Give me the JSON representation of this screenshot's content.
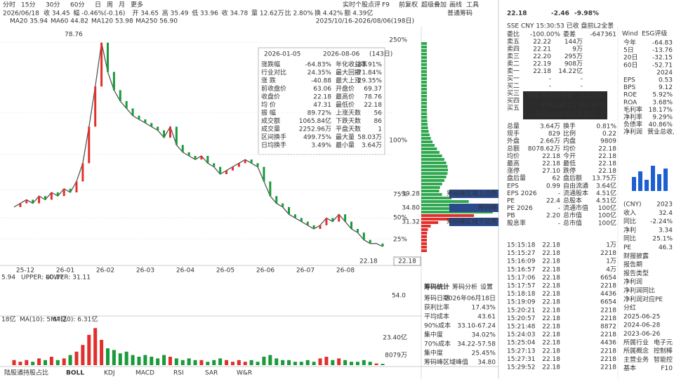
{
  "toolbar": {
    "periods": [
      "分时",
      "15分",
      "30分",
      "60分",
      "日",
      "周",
      "月",
      "更多"
    ],
    "tools": [
      "实时个股点评",
      "F9",
      "前复权",
      "超级叠加",
      "画线",
      "工具"
    ],
    "chip_title": "普通筹码"
  },
  "quote_bar": [
    "2026/06/18",
    "收 34.45",
    "幅 -0.46%(-0.16)",
    "开 34.65",
    "高 35.49",
    "低 33.96",
    "收 34.78",
    "量 12.62万",
    "比 2.80%",
    "换 4.42%",
    "额 4.39亿"
  ],
  "ma_bar": [
    "MA20 35.94",
    "MA60 44.82",
    "MA120 53.98",
    "MA250 56.90"
  ],
  "range": "2025/10/16-2026/08/06(198日)",
  "chart": {
    "dates": [
      "25-12",
      "26-01",
      "26-02",
      "26-03",
      "26-04",
      "26-05",
      "26-06",
      "26-07",
      "26-08"
    ],
    "pct_labels": [
      "250%",
      "100%",
      "75%",
      "50%",
      "25%"
    ],
    "high_label": "78.76",
    "low_label": "22.18",
    "price_tag": "22.18",
    "ylim": [
      17,
      82
    ],
    "price": [
      33,
      34,
      35,
      34,
      36,
      35,
      37,
      36,
      38,
      37,
      40,
      45,
      55,
      66,
      78,
      70,
      65,
      62,
      60,
      58,
      57,
      56,
      55,
      54,
      52,
      55,
      50,
      48,
      47,
      46,
      47,
      45,
      44,
      42,
      43,
      44,
      45,
      46,
      45,
      44,
      40,
      36,
      34,
      33,
      31,
      30,
      29,
      28,
      27,
      28,
      30,
      29,
      31,
      29,
      27,
      26,
      24,
      23,
      23,
      22.18
    ],
    "vol_ylim": [
      0,
      25
    ],
    "volume": [
      3,
      2,
      3,
      2,
      4,
      3,
      5,
      3,
      4,
      6,
      8,
      12,
      18,
      22,
      15,
      10,
      9,
      7,
      8,
      6,
      5,
      6,
      5,
      4,
      6,
      5,
      4,
      3,
      4,
      3,
      3,
      2,
      3,
      4,
      3,
      2,
      3,
      2,
      3,
      2,
      5,
      6,
      4,
      3,
      3,
      2,
      2,
      3,
      2,
      4,
      5,
      3,
      4,
      3,
      2,
      2,
      3,
      2,
      1,
      0.8
    ]
  },
  "chip_labels": {
    "prices": [
      "39.28",
      "34.80",
      "31.32"
    ],
    "zones": [
      "筹码峰区域上边界",
      "筹码峰",
      "筹码峰区域下边界"
    ]
  },
  "stats_popup": {
    "start": "2026-01-05",
    "end": "2026-08-06",
    "days": "(143日)",
    "rows": [
      [
        "涨跌幅",
        "-64.83%",
        "年化收益率",
        "-83.91%"
      ],
      [
        "行业对比",
        "24.35%",
        "最大回撤",
        "-71.84%"
      ],
      [
        "涨  跌",
        "-40.88",
        "最大上涨",
        "29.35%"
      ],
      [
        "前收盘价",
        "63.06",
        "开盘价",
        "69.37"
      ],
      [
        "收盘价",
        "22.18",
        "最高价",
        "78.76"
      ],
      [
        "均  价",
        "47.31",
        "最低价",
        "22.18"
      ],
      [
        "振  幅",
        "89.72%",
        "上涨天数",
        "56"
      ],
      [
        "成交额",
        "1065.84亿",
        "下跌天数",
        "86"
      ],
      [
        "成交量",
        "2252.96万",
        "平盘天数",
        "1"
      ],
      [
        "区间换手",
        "499.75%",
        "最大量",
        "58.03万"
      ],
      [
        "日均换手",
        "3.49%",
        "最小量",
        "3.64万"
      ]
    ]
  },
  "boll": {
    "name": "5.94",
    "upper": "UPPER: 40.77",
    "lower": "LOWER: 31.11",
    "tick": "54.0"
  },
  "vol_panel": {
    "name": "18亿",
    "ma10": "MA(10): 5.87亿",
    "ma20": "MA(20): 6.31亿",
    "tick": "23.40亿",
    "last": "8079万"
  },
  "bottom_tabs": [
    "陆股通持股占比",
    "BOLL",
    "KDJ",
    "MACD",
    "RSI",
    "SAR",
    "W&R"
  ],
  "chip_stats": {
    "tabs": [
      "筹码统计",
      "筹码分析",
      "设置"
    ],
    "rows": [
      [
        "筹码日期",
        "2026年06月18日"
      ],
      [
        "获利比率",
        "17.43%"
      ],
      [
        "平均成本",
        "43.61"
      ],
      [
        "90%成本",
        "33.10-67.24"
      ],
      [
        "集中度",
        "34.02%"
      ],
      [
        "70%成本",
        "34.22-57.58"
      ],
      [
        "集中度",
        "25.45%"
      ],
      [
        "筹码峰区域峰值",
        "34.80"
      ]
    ]
  },
  "quote": {
    "price": "22.18",
    "change": "-2.46",
    "pct": "-9.98%",
    "info": "SSE  CNY  15:30:53 已收  盘前L2全景",
    "book": [
      [
        "委比",
        "-100.00%",
        "委差",
        "-647361"
      ],
      [
        "卖五",
        "22.22",
        "144万"
      ],
      [
        "卖四",
        "22.21",
        "9万"
      ],
      [
        "卖三",
        "22.20",
        "295万"
      ],
      [
        "卖二",
        "22.19",
        "908万"
      ],
      [
        "卖一",
        "22.18",
        "14.22亿"
      ],
      [
        "买一",
        "-",
        "-"
      ],
      [
        "买二",
        "-",
        "-"
      ],
      [
        "买三",
        "-",
        "-"
      ],
      [
        "买四",
        "-",
        "-"
      ],
      [
        "买五",
        "-",
        "-"
      ]
    ],
    "limit_tip": [
      "跌停  跌停封单额",
      "14.22亿",
      "封单占成交",
      "1760.57%",
      "升级LV2解锁全景盘口"
    ],
    "stats": [
      [
        "总量",
        "3.64万",
        "换手",
        "0.81%"
      ],
      [
        "现手",
        "829",
        "比例",
        "0.22"
      ],
      [
        "外盘",
        "2.66万",
        "内盘",
        "9809"
      ],
      [
        "总额",
        "8078.62万",
        "均价",
        "22.18"
      ],
      [
        "均价",
        "22.18",
        "今开",
        "22.18"
      ],
      [
        "最高",
        "22.18",
        "最低",
        "22.18"
      ],
      [
        "涨停",
        "27.10",
        "跌停",
        "22.18"
      ],
      [
        "盘后量",
        "62",
        "盘后额",
        "13.75万"
      ],
      [
        "EPS",
        "0.99",
        "自由流通",
        "3.64亿"
      ],
      [
        "EPS 2026",
        "-",
        "流通股本",
        "4.51亿"
      ],
      [
        "PE",
        "22.4",
        "总股本",
        "4.51亿"
      ],
      [
        "PE 2026",
        "-",
        "流通市值",
        "100亿"
      ],
      [
        "PB",
        "2.20",
        "总市值",
        "100亿"
      ],
      [
        "股息率",
        "-",
        "总市值",
        "100亿"
      ]
    ],
    "trades": [
      [
        "15:15:18",
        "22.18",
        "1万"
      ],
      [
        "15:15:27",
        "22.18",
        "2218"
      ],
      [
        "15:16:09",
        "22.18",
        "1万"
      ],
      [
        "15:16:57",
        "22.18",
        "4万"
      ],
      [
        "15:17:06",
        "22.18",
        "6654"
      ],
      [
        "15:17:57",
        "22.18",
        "2218"
      ],
      [
        "15:18:18",
        "22.18",
        "4436"
      ],
      [
        "15:19:09",
        "22.18",
        "6654"
      ],
      [
        "15:20:21",
        "22.18",
        "2218"
      ],
      [
        "15:20:57",
        "22.18",
        "2218"
      ],
      [
        "15:21:48",
        "22.18",
        "8872"
      ],
      [
        "15:24:03",
        "22.18",
        "2218"
      ],
      [
        "15:25:04",
        "22.18",
        "4436"
      ],
      [
        "15:27:13",
        "22.18",
        "2218"
      ],
      [
        "15:27:31",
        "22.18",
        "2218"
      ],
      [
        "15:29:52",
        "22.18",
        "2218"
      ]
    ]
  },
  "side": {
    "head": [
      "Wind",
      "ESG评级"
    ],
    "rows": [
      [
        "今年",
        "-64.83"
      ],
      [
        "5日",
        "-13.76"
      ],
      [
        "20日",
        "-32.15"
      ],
      [
        "60日",
        "-52.71"
      ],
      [
        "",
        "2024"
      ],
      [
        "EPS",
        "0.53"
      ],
      [
        "BPS",
        "9.12"
      ],
      [
        "ROE",
        "5.92%"
      ],
      [
        "ROA",
        "3.68%"
      ],
      [
        "毛利率",
        "18.17%"
      ],
      [
        "净利率",
        "9.29%"
      ],
      [
        "负债率",
        "40.86%"
      ],
      [
        "净利润",
        "营业总收入"
      ]
    ],
    "lower": [
      [
        "(CNY)",
        "2023"
      ],
      [
        "收入",
        "32.4"
      ],
      [
        "同比",
        "-2.24%"
      ],
      [
        "净利",
        "3.34"
      ],
      [
        "同比",
        "25.1%"
      ],
      [
        "PE",
        "46.3"
      ],
      [
        "财报披露",
        ""
      ],
      [
        "报告期",
        ""
      ],
      [
        "报告类型",
        ""
      ],
      [
        "净利润",
        ""
      ],
      [
        "净利润同比",
        ""
      ],
      [
        "净利润对应PE",
        ""
      ],
      [
        "分红",
        ""
      ],
      [
        "2025-06-25",
        ""
      ],
      [
        "2024-06-28",
        ""
      ],
      [
        "2023-06-26",
        ""
      ],
      [
        "所属行业",
        "电子元"
      ],
      [
        "所属概念",
        "控制棒"
      ],
      [
        "主营业务",
        "智能控"
      ],
      [
        "基本",
        "F10"
      ]
    ]
  }
}
